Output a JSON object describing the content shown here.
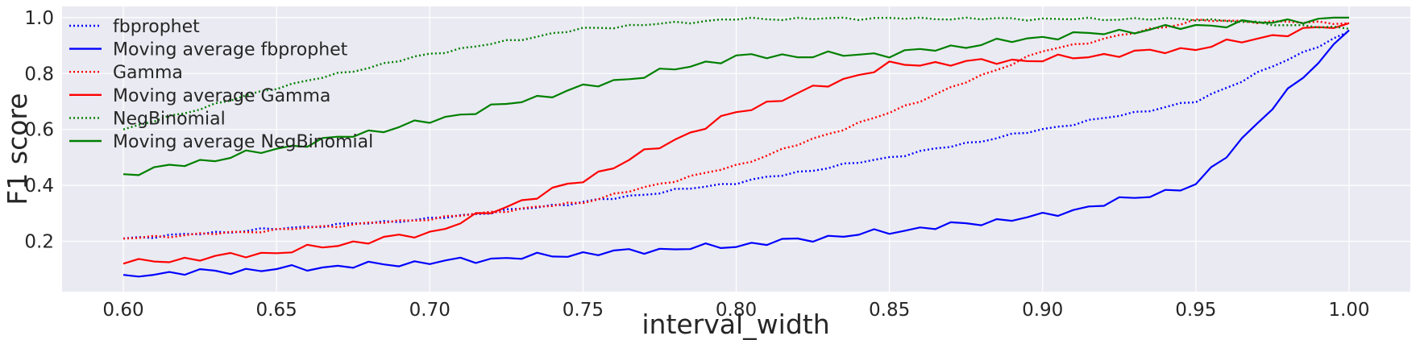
{
  "chart_data": {
    "type": "line",
    "xlabel": "interval_width",
    "ylabel": "F1 score",
    "xlim": [
      0.58,
      1.02
    ],
    "ylim": [
      0.02,
      1.04
    ],
    "xticks": [
      "0.60",
      "0.65",
      "0.70",
      "0.75",
      "0.80",
      "0.85",
      "0.90",
      "0.95",
      "1.00"
    ],
    "yticks": [
      "0.2",
      "0.4",
      "0.6",
      "0.8",
      "1.0"
    ],
    "grid": true,
    "legend_position": "top-left",
    "x_anchor": [
      0.6,
      0.65,
      0.7,
      0.75,
      0.8,
      0.85,
      0.9,
      0.95,
      1.0
    ],
    "series": [
      {
        "name": "fbprophet",
        "color": "#0000ff",
        "style": "dotted",
        "values": [
          0.21,
          0.245,
          0.28,
          0.34,
          0.41,
          0.5,
          0.6,
          0.7,
          0.95
        ]
      },
      {
        "name": "Moving average fbprophet",
        "color": "#0000ff",
        "style": "solid",
        "values": [
          0.08,
          0.1,
          0.125,
          0.155,
          0.185,
          0.235,
          0.29,
          0.4,
          0.955
        ]
      },
      {
        "name": "Gamma",
        "color": "#ff0000",
        "style": "dotted",
        "values": [
          0.21,
          0.24,
          0.28,
          0.34,
          0.47,
          0.66,
          0.88,
          0.99,
          0.98
        ]
      },
      {
        "name": "Moving average Gamma",
        "color": "#ff0000",
        "style": "solid",
        "values": [
          0.12,
          0.16,
          0.23,
          0.42,
          0.66,
          0.83,
          0.85,
          0.89,
          0.98
        ]
      },
      {
        "name": "NegBinomial",
        "color": "#008000",
        "style": "dotted",
        "values": [
          0.6,
          0.75,
          0.87,
          0.96,
          0.995,
          0.998,
          0.995,
          0.995,
          0.96
        ]
      },
      {
        "name": "Moving average NegBinomial",
        "color": "#008000",
        "style": "solid",
        "values": [
          0.44,
          0.53,
          0.63,
          0.75,
          0.86,
          0.87,
          0.93,
          0.97,
          1.0
        ]
      }
    ]
  }
}
